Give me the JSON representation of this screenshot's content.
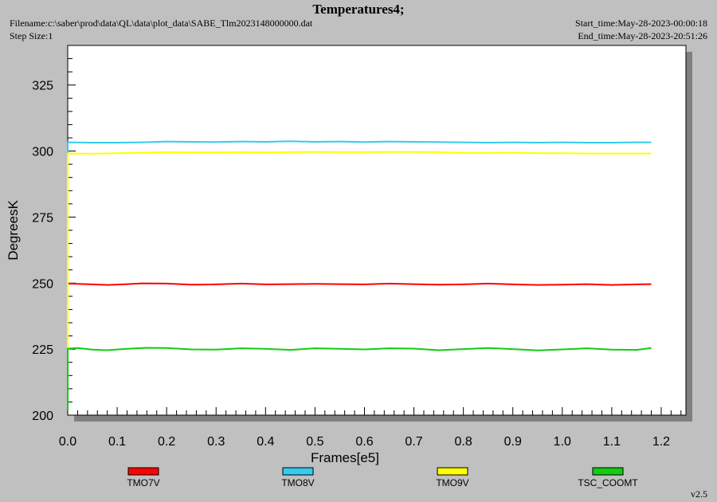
{
  "header": {
    "title": "Temperatures4;",
    "filename": "Filename:c:\\saber\\prod\\data\\QL\\data\\plot_data\\SABE_Tlm2023148000000.dat",
    "step_size": "Step Size:1",
    "start_time": "Start_time:May-28-2023-00:00:18",
    "end_time": "End_time:May-28-2023-20:51:26"
  },
  "version": "v2.5",
  "chart_data": {
    "type": "line",
    "xlabel": "Frames[e5]",
    "ylabel": "DegreesK",
    "xlim": [
      0.0,
      1.25
    ],
    "ylim": [
      200,
      340
    ],
    "xticks": [
      "0.0",
      "0.1",
      "0.2",
      "0.3",
      "0.4",
      "0.5",
      "0.6",
      "0.7",
      "0.8",
      "0.9",
      "1.0",
      "1.1",
      "1.2"
    ],
    "yticks": [
      "200",
      "225",
      "250",
      "275",
      "300",
      "325"
    ],
    "grid": false,
    "legend": "bottom",
    "series": [
      {
        "name": "TMO7V",
        "color": "#ff0000",
        "x": [
          0,
          0.0,
          0.02,
          0.05,
          0.08,
          0.12,
          0.15,
          0.2,
          0.25,
          0.3,
          0.35,
          0.4,
          0.45,
          0.5,
          0.55,
          0.6,
          0.65,
          0.7,
          0.75,
          0.8,
          0.85,
          0.9,
          0.95,
          1.0,
          1.05,
          1.1,
          1.15,
          1.18
        ],
        "y": [
          202,
          249.8,
          249.7,
          249.5,
          249.3,
          249.6,
          249.9,
          249.8,
          249.4,
          249.5,
          249.8,
          249.5,
          249.6,
          249.7,
          249.6,
          249.5,
          249.8,
          249.6,
          249.4,
          249.5,
          249.8,
          249.5,
          249.3,
          249.4,
          249.6,
          249.3,
          249.5,
          249.6
        ]
      },
      {
        "name": "TMO8V",
        "color": "#33ccee",
        "x": [
          0,
          0.0,
          0.05,
          0.1,
          0.15,
          0.2,
          0.25,
          0.3,
          0.35,
          0.4,
          0.45,
          0.5,
          0.55,
          0.6,
          0.65,
          0.7,
          0.75,
          0.8,
          0.85,
          0.9,
          0.95,
          1.0,
          1.05,
          1.1,
          1.15,
          1.18
        ],
        "y": [
          202,
          303.3,
          303.2,
          303.2,
          303.3,
          303.6,
          303.5,
          303.4,
          303.6,
          303.5,
          303.7,
          303.5,
          303.6,
          303.4,
          303.6,
          303.5,
          303.4,
          303.3,
          303.2,
          303.3,
          303.2,
          303.3,
          303.2,
          303.2,
          303.3,
          303.3
        ]
      },
      {
        "name": "TMO9V",
        "color": "#ffff00",
        "x": [
          0,
          0.0,
          0.05,
          0.1,
          0.15,
          0.2,
          0.25,
          0.3,
          0.35,
          0.4,
          0.45,
          0.5,
          0.55,
          0.6,
          0.65,
          0.7,
          0.75,
          0.8,
          0.85,
          0.9,
          0.95,
          1.0,
          1.05,
          1.1,
          1.15,
          1.18
        ],
        "y": [
          202,
          299.1,
          299.0,
          299.2,
          299.4,
          299.6,
          299.5,
          299.5,
          299.6,
          299.5,
          299.6,
          299.7,
          299.6,
          299.6,
          299.7,
          299.7,
          299.6,
          299.3,
          299.3,
          299.4,
          299.2,
          299.2,
          299.1,
          299.1,
          299.1,
          299.1
        ]
      },
      {
        "name": "TSC_COOMT",
        "color": "#11cc11",
        "x": [
          0,
          0.0,
          0.02,
          0.05,
          0.08,
          0.12,
          0.16,
          0.2,
          0.25,
          0.3,
          0.35,
          0.4,
          0.45,
          0.5,
          0.55,
          0.6,
          0.65,
          0.7,
          0.75,
          0.8,
          0.85,
          0.9,
          0.95,
          1.0,
          1.05,
          1.1,
          1.15,
          1.18
        ],
        "y": [
          202,
          225.2,
          225.4,
          224.8,
          224.6,
          225.1,
          225.5,
          225.4,
          224.9,
          224.8,
          225.3,
          225.1,
          224.7,
          225.3,
          225.1,
          224.9,
          225.3,
          225.2,
          224.6,
          225.0,
          225.4,
          225.0,
          224.5,
          224.9,
          225.3,
          224.8,
          224.7,
          225.4
        ]
      }
    ]
  }
}
